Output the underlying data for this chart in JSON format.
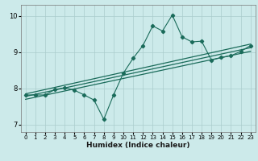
{
  "xlabel": "Humidex (Indice chaleur)",
  "bg_color": "#cceaea",
  "line_color": "#1a6b5a",
  "grid_color": "#aacccc",
  "xlim": [
    -0.5,
    23.5
  ],
  "ylim": [
    6.8,
    10.3
  ],
  "yticks": [
    7,
    8,
    9,
    10
  ],
  "xticks": [
    0,
    1,
    2,
    3,
    4,
    5,
    6,
    7,
    8,
    9,
    10,
    11,
    12,
    13,
    14,
    15,
    16,
    17,
    18,
    19,
    20,
    21,
    22,
    23
  ],
  "scatter_x": [
    0,
    1,
    2,
    3,
    4,
    5,
    6,
    7,
    8,
    9,
    10,
    11,
    12,
    13,
    14,
    15,
    16,
    17,
    18,
    19,
    20,
    21,
    22,
    23
  ],
  "scatter_y": [
    7.82,
    7.82,
    7.82,
    7.97,
    8.02,
    7.95,
    7.82,
    7.68,
    7.15,
    7.82,
    8.42,
    8.83,
    9.18,
    9.72,
    9.58,
    10.02,
    9.42,
    9.28,
    9.3,
    8.78,
    8.85,
    8.9,
    9.02,
    9.18
  ],
  "reg_lines": [
    {
      "x0": 0,
      "x1": 23,
      "y0": 7.85,
      "y1": 9.22
    },
    {
      "x0": 0,
      "x1": 23,
      "y0": 7.78,
      "y1": 9.12
    },
    {
      "x0": 0,
      "x1": 23,
      "y0": 7.7,
      "y1": 9.02
    }
  ]
}
